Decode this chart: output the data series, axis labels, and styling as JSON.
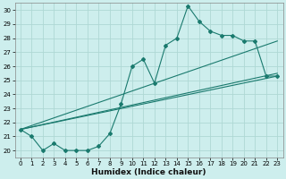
{
  "xlabel": "Humidex (Indice chaleur)",
  "bg_color": "#cdeeed",
  "grid_color": "#aed8d4",
  "line_color": "#1a7a6e",
  "x_min": -0.5,
  "x_max": 23.5,
  "y_min": 19.5,
  "y_max": 30.5,
  "yticks": [
    20,
    21,
    22,
    23,
    24,
    25,
    26,
    27,
    28,
    29,
    30
  ],
  "xtick_labels": [
    "0",
    "1",
    "2",
    "3",
    "4",
    "5",
    "6",
    "7",
    "8",
    "9",
    "10",
    "11",
    "12",
    "13",
    "14",
    "15",
    "16",
    "17",
    "18",
    "19",
    "20",
    "21",
    "22",
    "23"
  ],
  "xtick_pos": [
    0,
    1,
    2,
    3,
    4,
    5,
    6,
    7,
    8,
    9,
    10,
    11,
    12,
    13,
    14,
    15,
    16,
    17,
    18,
    19,
    20,
    21,
    22,
    23
  ],
  "main_x": [
    0,
    1,
    2,
    3,
    4,
    5,
    6,
    7,
    8,
    9,
    10,
    11,
    12,
    13,
    14,
    15,
    16,
    17,
    18,
    19,
    20,
    21,
    22,
    23
  ],
  "main_y": [
    21.5,
    21.0,
    20.0,
    20.5,
    20.0,
    20.0,
    20.0,
    20.3,
    21.2,
    23.3,
    26.0,
    26.5,
    24.8,
    27.5,
    28.0,
    30.3,
    29.2,
    28.5,
    28.2,
    28.2,
    27.8,
    27.8,
    25.3,
    25.3
  ],
  "trend1_x": [
    0,
    23
  ],
  "trend1_y": [
    21.5,
    27.8
  ],
  "trend2_x": [
    0,
    23
  ],
  "trend2_y": [
    21.5,
    25.5
  ],
  "trend3_x": [
    0,
    23
  ],
  "trend3_y": [
    21.5,
    25.3
  ]
}
